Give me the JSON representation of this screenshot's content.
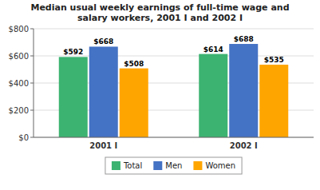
{
  "chart_data": {
    "type": "bar",
    "title": "Median usual weekly earnings of full-time wage and\nsalary workers, 2001 I and 2002 I",
    "categories": [
      "2001 I",
      "2002 I"
    ],
    "series": [
      {
        "name": "Total",
        "color": "#3cb371",
        "values": [
          592,
          614
        ],
        "value_labels": [
          "$592",
          "$614"
        ]
      },
      {
        "name": "Men",
        "color": "#4472c4",
        "values": [
          668,
          688
        ],
        "value_labels": [
          "$668",
          "$688"
        ]
      },
      {
        "name": "Women",
        "color": "#ffa500",
        "values": [
          508,
          535
        ],
        "value_labels": [
          "$508",
          "$535"
        ]
      }
    ],
    "ylim": [
      0,
      800
    ],
    "yticks": [
      {
        "value": 0,
        "label": "$0"
      },
      {
        "value": 200,
        "label": "$200"
      },
      {
        "value": 400,
        "label": "$400"
      },
      {
        "value": 600,
        "label": "$600"
      },
      {
        "value": 800,
        "label": "$800"
      }
    ],
    "grid": true,
    "data_labels": true,
    "legend": "bottom"
  }
}
